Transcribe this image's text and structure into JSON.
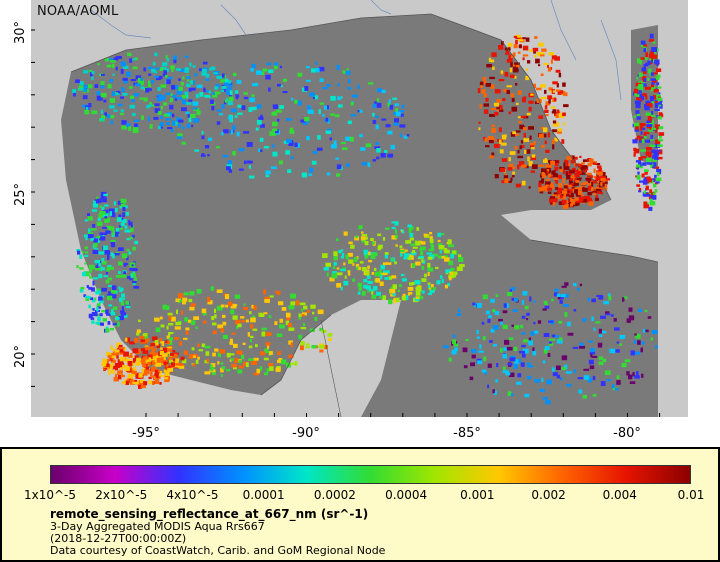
{
  "map": {
    "credit": "NOAA/AOML",
    "lat_ticks": [
      "30°",
      "25°",
      "20°"
    ],
    "lon_ticks": [
      "-95°",
      "-90°",
      "-85°",
      "-80°"
    ],
    "colors": {
      "land": "#c9c9c9",
      "no_data": "#7a7a7a",
      "borders": "#555555",
      "rivers": "#6a8fbf"
    }
  },
  "legend": {
    "variable": "remote_sensing_reflectance_at_667_nm (sr^-1)",
    "line1": "3-Day Aggregated MODIS Aqua Rrs667",
    "line2": "(2018-12-27T00:00:00Z)",
    "line3": "Data courtesy of CoastWatch, Carib. and GoM Regional Node",
    "colorbar_labels": [
      "1x10^-5",
      "2x10^-5",
      "4x10^-5",
      "0.0001",
      "0.0002",
      "0.0004",
      "0.001",
      "0.002",
      "0.004",
      "0.01"
    ],
    "colorbar_colors": [
      "#6a006a",
      "#c800c8",
      "#3232ff",
      "#0090ff",
      "#00e6c8",
      "#32dc32",
      "#a0e600",
      "#ffc800",
      "#ff6400",
      "#e61400",
      "#8c0000"
    ]
  }
}
